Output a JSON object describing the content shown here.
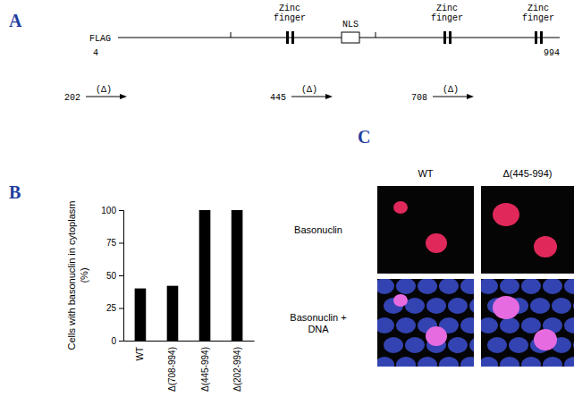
{
  "panel_labels": [
    "A",
    "B",
    "C"
  ],
  "panel_a": {
    "tag": "FLAG",
    "start": "4",
    "end": "994",
    "zinc_fingers": [
      [
        "Zinc",
        "finger"
      ],
      [
        "Zinc",
        "finger"
      ],
      [
        "Zinc",
        "finger"
      ]
    ],
    "nls": "NLS",
    "deletions": [
      {
        "start": "202",
        "label": "(Δ)"
      },
      {
        "start": "445",
        "label": "(Δ)"
      },
      {
        "start": "708",
        "label": "(Δ)"
      }
    ]
  },
  "chart_data": {
    "type": "bar",
    "categories": [
      "WT",
      "Δ(708-994)",
      "Δ(445-994)",
      "Δ(202-994)"
    ],
    "values": [
      40,
      42,
      100,
      100
    ],
    "color": "#000000",
    "ylim": [
      0,
      100
    ],
    "yticks": [
      0,
      25,
      50,
      75,
      100
    ],
    "ylabel": [
      "Cells with basonuclin in cytoplasm",
      "(%)"
    ]
  },
  "panel_c": {
    "columns": [
      "WT",
      "Δ(445-994)"
    ],
    "rows": [
      [
        "Basonuclin"
      ],
      [
        "Basonuclin +",
        "DNA"
      ]
    ]
  }
}
